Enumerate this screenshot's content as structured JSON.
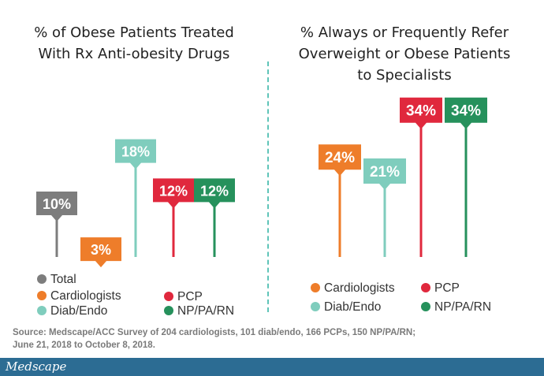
{
  "colors": {
    "total": "#7d7d7d",
    "cardiologists": "#ee7d2a",
    "diab_endo": "#7fcdbd",
    "pcp": "#e0283d",
    "np_pa_rn": "#26915c"
  },
  "chart_data": [
    {
      "type": "bar",
      "title": "% of Obese Patients Treated With Rx Anti-obesity Drugs",
      "categories": [
        "Total",
        "Cardiologists",
        "Diab/Endo",
        "PCP",
        "NP/PA/RN"
      ],
      "values": [
        10,
        3,
        18,
        12,
        12
      ],
      "value_labels": [
        "10%",
        "3%",
        "18%",
        "12%",
        "12%"
      ]
    },
    {
      "type": "bar",
      "title": "% Always or Frequently Refer Overweight or Obese Patients to Specialists",
      "categories": [
        "Cardiologists",
        "Diab/Endo",
        "PCP",
        "NP/PA/RN"
      ],
      "values": [
        24,
        21,
        34,
        34
      ],
      "value_labels": [
        "24%",
        "21%",
        "34%",
        "34%"
      ]
    }
  ],
  "titles": {
    "left": [
      "% of Obese Patients Treated",
      "With Rx Anti-obesity Drugs"
    ],
    "right": [
      "% Always or Frequently Refer",
      "Overweight or Obese Patients",
      "to Specialists"
    ]
  },
  "legend_left": [
    {
      "label": "Total",
      "color": "#7d7d7d"
    },
    {
      "label": "Cardiologists",
      "color": "#ee7d2a"
    },
    {
      "label": "Diab/Endo",
      "color": "#7fcdbd"
    },
    {
      "label": "PCP",
      "color": "#e0283d"
    },
    {
      "label": "NP/PA/RN",
      "color": "#26915c"
    }
  ],
  "legend_right": [
    {
      "label": "Cardiologists",
      "color": "#ee7d2a"
    },
    {
      "label": "PCP",
      "color": "#e0283d"
    },
    {
      "label": "Diab/Endo",
      "color": "#7fcdbd"
    },
    {
      "label": "NP/PA/RN",
      "color": "#26915c"
    }
  ],
  "source": [
    "Source: Medscape/ACC Survey of 204 cardiologists, 101 diab/endo, 166 PCPs, 150 NP/PA/RN;",
    "June 21, 2018 to October 8, 2018."
  ],
  "brand": "Medscape"
}
